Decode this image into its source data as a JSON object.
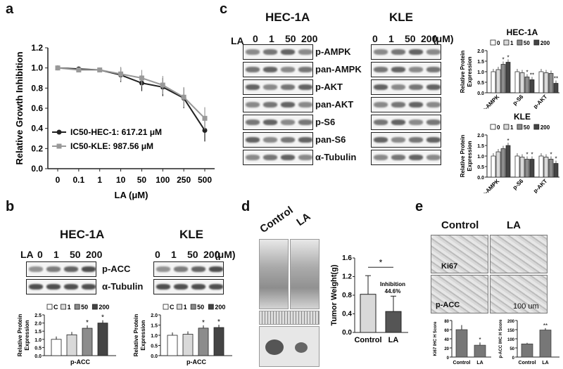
{
  "panels": {
    "a": {
      "label": "a",
      "chart_data": {
        "type": "line",
        "categories": [
          "0",
          "0.1",
          "1",
          "10",
          "50",
          "100",
          "250",
          "500"
        ],
        "xlabel": "LA (μM)",
        "ylabel": "Relative Growth Inhibition",
        "ylim": [
          0.0,
          1.2
        ],
        "yticks": [
          "0.0",
          "0.2",
          "0.4",
          "0.6",
          "0.8",
          "1.0",
          "1.2"
        ],
        "series": [
          {
            "name": "IC50-HEC-1: 617.21 μM",
            "color": "#222222",
            "values": [
              1.0,
              0.99,
              0.98,
              0.93,
              0.85,
              0.81,
              0.7,
              0.38
            ]
          },
          {
            "name": "IC50-KLE: 987.56 μM",
            "color": "#999999",
            "values": [
              1.0,
              0.98,
              0.98,
              0.94,
              0.9,
              0.83,
              0.71,
              0.5
            ]
          }
        ]
      }
    },
    "b": {
      "label": "b",
      "hec_title": "HEC-1A",
      "kle_title": "KLE",
      "la_label": "LA",
      "doses": [
        "0",
        "1",
        "50",
        "200"
      ],
      "unit": "(μM)",
      "rows": [
        "p-ACC",
        "α-Tubulin"
      ],
      "chart_data": [
        {
          "type": "bar",
          "ylabel": "Relative Protein Expression",
          "xlabel": "p-ACC",
          "ylim": [
            0,
            2.5
          ],
          "yticks": [
            "0.0",
            "0.5",
            "1.0",
            "1.5",
            "2.0",
            "2.5"
          ],
          "legend": [
            "C",
            "1",
            "50",
            "200"
          ],
          "values": [
            1.0,
            1.28,
            1.68,
            2.0
          ],
          "stars": [
            "",
            "",
            "*",
            "*"
          ]
        },
        {
          "type": "bar",
          "ylabel": "Relative Protein Expression",
          "xlabel": "p-ACC",
          "ylim": [
            0,
            2.0
          ],
          "yticks": [
            "0.0",
            "0.5",
            "1.0",
            "1.5",
            "2.0"
          ],
          "legend": [
            "C",
            "1",
            "50",
            "200"
          ],
          "values": [
            1.0,
            1.05,
            1.35,
            1.38
          ],
          "stars": [
            "",
            "",
            "*",
            "*"
          ]
        }
      ]
    },
    "c": {
      "label": "c",
      "hec_title": "HEC-1A",
      "kle_title": "KLE",
      "la_label": "LA",
      "doses": [
        "0",
        "1",
        "50",
        "200"
      ],
      "unit": "(μM)",
      "rows": [
        "p-AMPK",
        "pan-AMPK",
        "p-AKT",
        "pan-AKT",
        "p-S6",
        "pan-S6",
        "α-Tubulin"
      ],
      "chart_data": [
        {
          "type": "bar",
          "title": "HEC-1A",
          "ylabel": "Relative Protein Expression",
          "ylim": [
            0,
            2.0
          ],
          "yticks": [
            "0.0",
            "0.5",
            "1.0",
            "1.5",
            "2.0"
          ],
          "legend": [
            "0",
            "1",
            "50",
            "200"
          ],
          "categories": [
            "p-AMPK",
            "p-S6",
            "p-AKT"
          ],
          "values": [
            [
              1.0,
              1.1,
              1.35,
              1.45
            ],
            [
              1.0,
              0.95,
              0.75,
              0.62
            ],
            [
              1.0,
              0.95,
              0.92,
              0.45
            ]
          ],
          "stars": [
            [
              "",
              "",
              "*",
              "*"
            ],
            [
              "",
              "",
              "*",
              "**"
            ],
            [
              "",
              "",
              "",
              "**"
            ]
          ]
        },
        {
          "type": "bar",
          "title": "KLE",
          "ylabel": "Relative Protein Expression",
          "ylim": [
            0,
            2.0
          ],
          "yticks": [
            "0.0",
            "0.5",
            "1.0",
            "1.5",
            "2.0"
          ],
          "legend": [
            "0",
            "1",
            "50",
            "200"
          ],
          "categories": [
            "p-AMPK",
            "p-S6",
            "p-AKT"
          ],
          "values": [
            [
              1.0,
              1.2,
              1.35,
              1.5
            ],
            [
              1.0,
              0.95,
              0.85,
              0.85
            ],
            [
              1.0,
              0.95,
              0.85,
              0.65
            ]
          ],
          "stars": [
            [
              "",
              "",
              "",
              "*"
            ],
            [
              "",
              "",
              "*",
              "*"
            ],
            [
              "",
              "",
              "*",
              "*"
            ]
          ]
        }
      ]
    },
    "d": {
      "label": "d",
      "control": "Control",
      "la": "LA",
      "chart_data": {
        "type": "bar",
        "ylabel": "Tumor Weight(g)",
        "ylim": [
          0,
          1.6
        ],
        "yticks": [
          "0.0",
          "0.4",
          "0.8",
          "1.2",
          "1.6"
        ],
        "categories": [
          "Control",
          "LA"
        ],
        "values": [
          0.82,
          0.45
        ],
        "errors": [
          0.4,
          0.33
        ],
        "annotation": "Inhibition\n44.6%",
        "star": "*"
      }
    },
    "e": {
      "label": "e",
      "control": "Control",
      "la": "LA",
      "stain1": "Ki67",
      "stain2": "p-ACC",
      "scale": "100 um",
      "chart_data": [
        {
          "type": "bar",
          "ylabel": "Ki67 IHC H Score",
          "ylim": [
            0,
            80
          ],
          "yticks": [
            "0",
            "20",
            "40",
            "60",
            "80"
          ],
          "categories": [
            "Control",
            "LA"
          ],
          "values": [
            60,
            26
          ],
          "errors": [
            10,
            6
          ],
          "stars": [
            "",
            "*"
          ]
        },
        {
          "type": "bar",
          "ylabel": "p-ACC IHC H Score",
          "ylim": [
            0,
            200
          ],
          "yticks": [
            "0",
            "50",
            "100",
            "150",
            "200"
          ],
          "categories": [
            "Control",
            "LA"
          ],
          "values": [
            72,
            148
          ],
          "errors": [
            6,
            10
          ],
          "stars": [
            "",
            "**"
          ]
        }
      ]
    }
  }
}
